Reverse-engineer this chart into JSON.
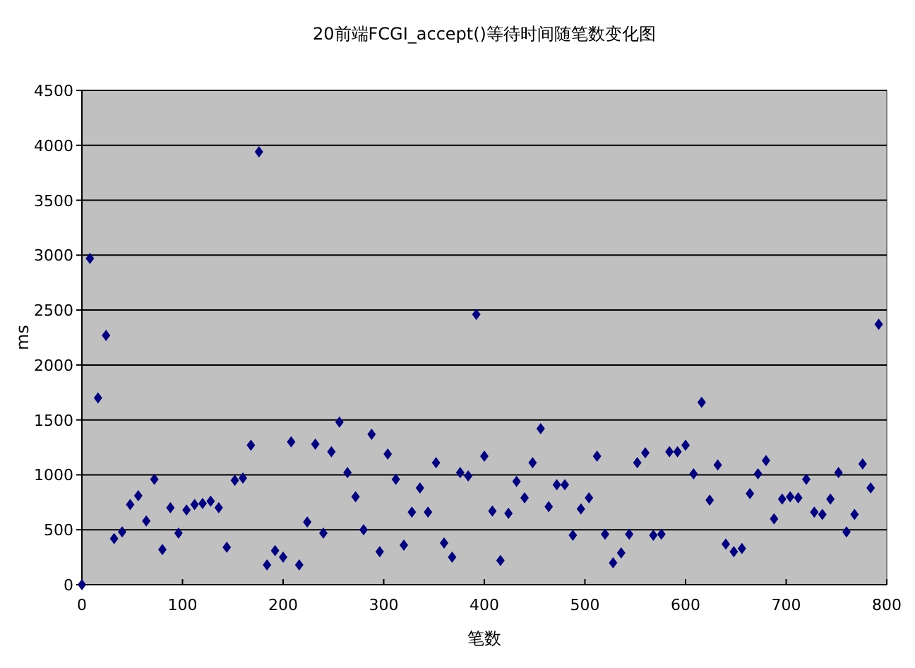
{
  "chart_data": {
    "type": "scatter",
    "title": "20前端FCGI_accept()等待时间随笔数变化图",
    "xlabel": "笔数",
    "ylabel": "ms",
    "x": [
      0,
      8,
      16,
      24,
      32,
      40,
      48,
      56,
      64,
      72,
      80,
      88,
      96,
      104,
      112,
      120,
      128,
      136,
      144,
      152,
      160,
      168,
      176,
      184,
      192,
      200,
      208,
      216,
      224,
      232,
      240,
      248,
      256,
      264,
      272,
      280,
      288,
      296,
      304,
      312,
      320,
      328,
      336,
      344,
      352,
      360,
      368,
      376,
      384,
      392,
      400,
      408,
      416,
      424,
      432,
      440,
      448,
      456,
      464,
      472,
      480,
      488,
      496,
      504,
      512,
      520,
      528,
      536,
      544,
      552,
      560,
      568,
      576,
      584,
      592,
      600,
      608,
      616,
      624,
      632,
      640,
      648,
      656,
      664,
      672,
      680,
      688,
      696,
      704,
      712,
      720,
      728,
      736,
      744,
      752,
      760,
      768,
      776,
      784,
      792
    ],
    "series": [
      {
        "color": "#000080",
        "values": [
          0,
          2970,
          1700,
          2270,
          420,
          480,
          730,
          810,
          580,
          960,
          320,
          700,
          470,
          680,
          730,
          740,
          760,
          700,
          340,
          950,
          970,
          1270,
          3940,
          180,
          310,
          250,
          1300,
          180,
          570,
          1280,
          470,
          1210,
          1480,
          1020,
          800,
          500,
          1370,
          300,
          1190,
          960,
          360,
          660,
          880,
          660,
          1110,
          380,
          250,
          1020,
          990,
          2460,
          1170,
          670,
          220,
          650,
          940,
          790,
          1110,
          1420,
          710,
          910,
          910,
          450,
          690,
          790,
          1170,
          460,
          200,
          290,
          460,
          1110,
          1200,
          450,
          460,
          1210,
          1210,
          1270,
          1010,
          1660,
          770,
          1090,
          370,
          300,
          330,
          830,
          1010,
          1130,
          600,
          780,
          800,
          790,
          960,
          660,
          640,
          780,
          1020,
          480,
          640,
          1100,
          880,
          2370
        ]
      }
    ],
    "xlim": [
      0,
      800
    ],
    "xticks": [
      0,
      100,
      200,
      300,
      400,
      500,
      600,
      700,
      800
    ],
    "ylim": [
      0,
      4500
    ],
    "yticks": [
      0,
      500,
      1000,
      1500,
      2000,
      2500,
      3000,
      3500,
      4000,
      4500
    ],
    "grid": "y",
    "marker": "diamond"
  }
}
